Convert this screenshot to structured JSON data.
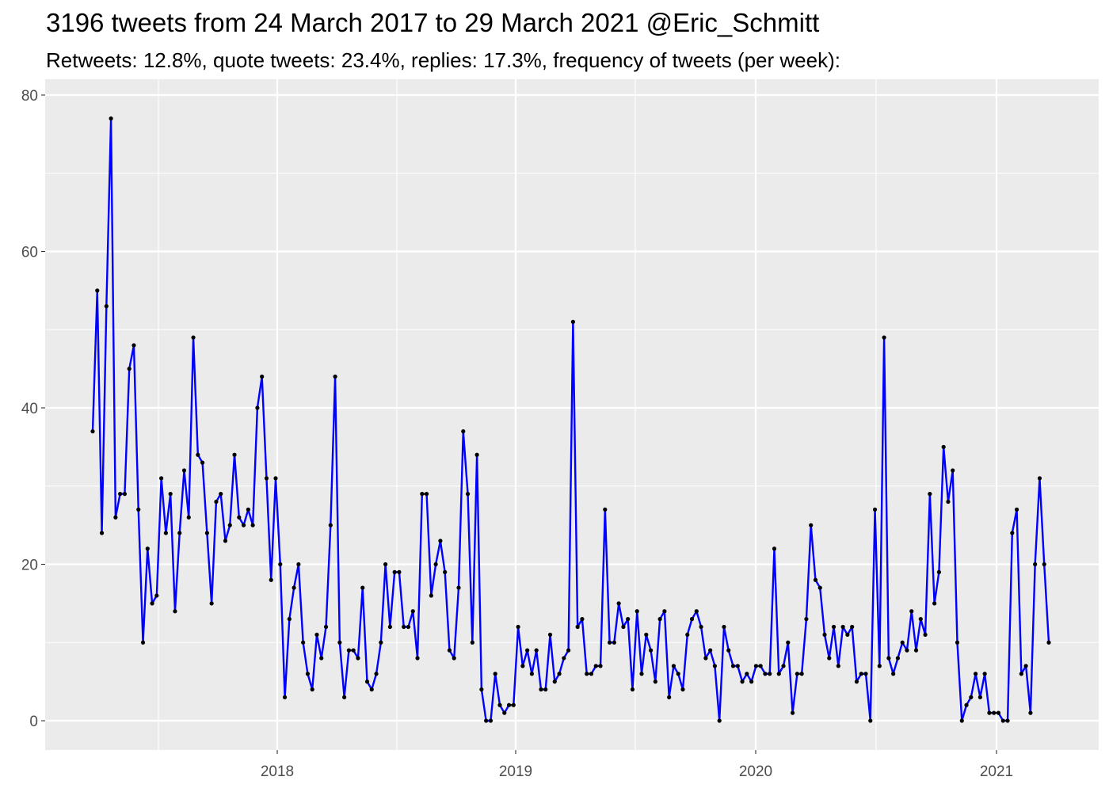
{
  "colors": {
    "panel": "#ebebeb",
    "grid": "#ffffff",
    "line": "#0000ff",
    "point": "#000000",
    "tick": "#4d4d4d"
  },
  "chart_data": {
    "type": "line",
    "title": "3196 tweets from 24 March 2017 to 29 March 2021 @Eric_Schmitt",
    "subtitle": "Retweets: 12.8%, quote tweets: 23.4%, replies: 17.3%, frequency of tweets (per week):",
    "xlabel": "",
    "ylabel": "",
    "x_axis": "weekly, starting the week of 24 March 2017",
    "x_tick_labels": [
      "2018",
      "2019",
      "2020",
      "2021"
    ],
    "y_tick_labels": [
      "0",
      "20",
      "40",
      "60",
      "80"
    ],
    "ylim": [
      -3.85,
      80.85
    ],
    "grid": true,
    "legend": "none",
    "series": [
      {
        "values": [
          37,
          55,
          24,
          53,
          77,
          26,
          29,
          29,
          45,
          48,
          27,
          10,
          22,
          15,
          16,
          31,
          24,
          29,
          14,
          24,
          32,
          26,
          49,
          34,
          33,
          24,
          15,
          28,
          29,
          23,
          25,
          34,
          26,
          25,
          27,
          25,
          40,
          44,
          31,
          18,
          31,
          20,
          3,
          13,
          17,
          20,
          10,
          6,
          4,
          11,
          8,
          12,
          25,
          44,
          10,
          3,
          9,
          9,
          8,
          17,
          5,
          4,
          6,
          10,
          20,
          12,
          19,
          19,
          12,
          12,
          14,
          8,
          29,
          29,
          16,
          20,
          23,
          19,
          9,
          8,
          17,
          37,
          29,
          10,
          34,
          4,
          0,
          0,
          6,
          2,
          1,
          2,
          2,
          12,
          7,
          9,
          6,
          9,
          4,
          4,
          11,
          5,
          6,
          8,
          9,
          51,
          12,
          13,
          6,
          6,
          7,
          7,
          27,
          10,
          10,
          15,
          12,
          13,
          4,
          14,
          6,
          11,
          9,
          5,
          13,
          14,
          3,
          7,
          6,
          4,
          11,
          13,
          14,
          12,
          8,
          9,
          7,
          0,
          12,
          9,
          7,
          7,
          5,
          6,
          5,
          7,
          7,
          6,
          6,
          22,
          6,
          7,
          10,
          1,
          6,
          6,
          13,
          25,
          18,
          17,
          11,
          8,
          12,
          7,
          12,
          11,
          12,
          5,
          6,
          6,
          0,
          27,
          7,
          49,
          8,
          6,
          8,
          10,
          9,
          14,
          9,
          13,
          11,
          29,
          15,
          19,
          35,
          28,
          32,
          10,
          0,
          2,
          3,
          6,
          3,
          6,
          1,
          1,
          1,
          0,
          0,
          24,
          27,
          6,
          7,
          1,
          20,
          31,
          20,
          10
        ]
      }
    ]
  }
}
